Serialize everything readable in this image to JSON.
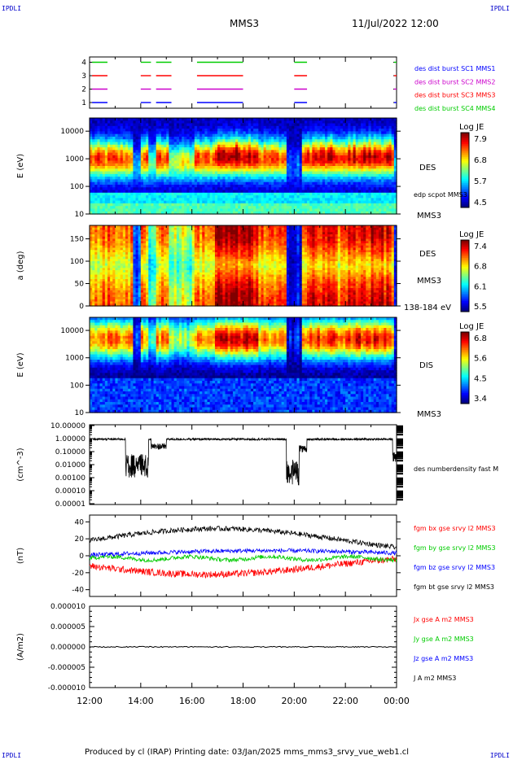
{
  "corners": {
    "tl": "IPDLI",
    "tr": "IPDLI",
    "bl": "IPDLI",
    "br": "IPDLI"
  },
  "header": {
    "spacecraft": "MMS3",
    "datetime": "11/Jul/2022 12:00"
  },
  "footer": {
    "text": "Produced by cl (IRAP)   Printing date: 03/Jan/2025   mms_mms3_srvy_vue_web1.cl"
  },
  "colors": {
    "blue": "#0000ff",
    "magenta": "#cc00cc",
    "red": "#ff0000",
    "green": "#00cc00",
    "black": "#000000"
  },
  "chart_data": [
    {
      "type": "scatter",
      "id": "burst",
      "yticks": [
        "1",
        "2",
        "3",
        "4"
      ],
      "legend": [
        {
          "name": "des dist burst SC1 MMS1",
          "color": "#0000ff",
          "level": 1
        },
        {
          "name": "des dist burst SC2 MMS2",
          "color": "#cc00cc",
          "level": 2
        },
        {
          "name": "des dist burst SC3 MMS3",
          "color": "#ff0000",
          "level": 3
        },
        {
          "name": "des dist burst SC4 MMS4",
          "color": "#00cc00",
          "level": 4
        }
      ],
      "intervals_hours": [
        [
          12.1,
          12.7
        ],
        [
          14.0,
          14.4
        ],
        [
          14.6,
          15.2
        ],
        [
          16.2,
          18.0
        ],
        [
          20.0,
          20.5
        ],
        [
          23.9,
          24.0
        ]
      ]
    },
    {
      "type": "heatmap",
      "id": "des_e",
      "ylabel": "E (eV)",
      "yticks": [
        "10",
        "100",
        "1000",
        "10000"
      ],
      "yrange": [
        10,
        30000
      ],
      "colorbar": {
        "title": "Log JE",
        "ticks": [
          "7.9",
          "6.8",
          "5.7",
          "4.5"
        ],
        "range": [
          4.5,
          7.9
        ]
      },
      "right_labels": [
        "DES",
        "edp scpot MMS3",
        "MMS3"
      ]
    },
    {
      "type": "heatmap",
      "id": "des_pa",
      "ylabel": "a (deg)",
      "yticks": [
        "0",
        "50",
        "100",
        "150"
      ],
      "yrange": [
        0,
        180
      ],
      "colorbar": {
        "title": "Log JE",
        "ticks": [
          "7.4",
          "6.8",
          "6.1",
          "5.5"
        ],
        "range": [
          5.5,
          7.4
        ]
      },
      "right_labels": [
        "DES",
        "MMS3",
        "138-184 eV"
      ]
    },
    {
      "type": "heatmap",
      "id": "dis_e",
      "ylabel": "E (eV)",
      "yticks": [
        "10",
        "100",
        "1000",
        "10000"
      ],
      "yrange": [
        10,
        30000
      ],
      "colorbar": {
        "title": "Log JE",
        "ticks": [
          "6.8",
          "5.6",
          "4.5",
          "3.4"
        ],
        "range": [
          3.4,
          6.8
        ]
      },
      "right_labels": [
        "DIS",
        "MMS3"
      ]
    },
    {
      "type": "line",
      "id": "density",
      "ylabel": "(cm^-3)",
      "yticks": [
        "10.00000",
        "1.00000",
        "0.10000",
        "0.01000",
        "0.00100",
        "0.00010",
        "0.00001"
      ],
      "series": [
        {
          "name": "des numberdensity fast M",
          "color": "#000000"
        }
      ]
    },
    {
      "type": "line",
      "id": "fgm",
      "ylabel": "(nT)",
      "yticks": [
        "40",
        "20",
        "0",
        "-20",
        "-40"
      ],
      "ylim": [
        -48,
        48
      ],
      "series": [
        {
          "name": "fgm bx gse srvy l2 MMS3",
          "color": "#ff0000"
        },
        {
          "name": "fgm by gse srvy l2 MMS3",
          "color": "#00cc00"
        },
        {
          "name": "fgm bz gse srvy l2 MMS3",
          "color": "#0000ff"
        },
        {
          "name": "fgm bt gse srvy l2 MMS3",
          "color": "#000000"
        }
      ]
    },
    {
      "type": "line",
      "id": "current",
      "ylabel": "(A/m2)",
      "yticks": [
        "0.000010",
        "0.000005",
        "0.000000",
        "-0.000005",
        "-0.000010"
      ],
      "ylim": [
        -1e-05,
        1e-05
      ],
      "series": [
        {
          "name": "Jx gse A m2 MMS3",
          "color": "#ff0000"
        },
        {
          "name": "Jy gse A m2 MMS3",
          "color": "#00cc00"
        },
        {
          "name": "Jz gse A m2 MMS3",
          "color": "#0000ff"
        },
        {
          "name": "J A m2 MMS3",
          "color": "#000000"
        }
      ]
    }
  ],
  "xaxis": {
    "ticks": [
      "12:00",
      "14:00",
      "16:00",
      "18:00",
      "20:00",
      "22:00",
      "00:00"
    ],
    "range_hours": [
      12,
      24
    ]
  }
}
